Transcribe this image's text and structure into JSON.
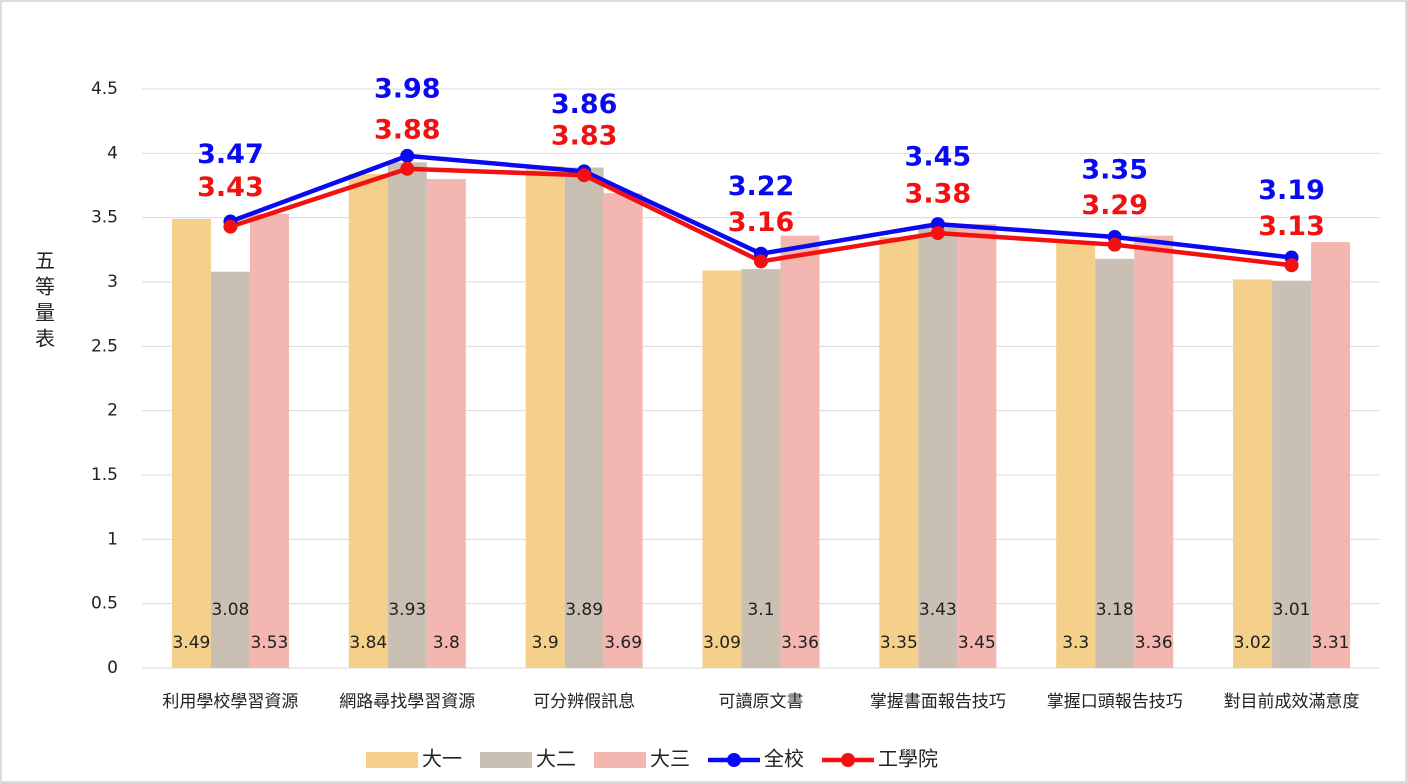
{
  "chart_data": {
    "type": "bar-line",
    "y_label": "五等量表",
    "categories": [
      "利用學校學習資源",
      "網路尋找學習資源",
      "可分辨假訊息",
      "可讀原文書",
      "掌握書面報告技巧",
      "掌握口頭報告技巧",
      "對目前成效滿意度"
    ],
    "series": [
      {
        "name": "大一",
        "kind": "bar",
        "color": "#f4d08a",
        "values": [
          3.49,
          3.84,
          3.9,
          3.09,
          3.35,
          3.3,
          3.02
        ]
      },
      {
        "name": "大二",
        "kind": "bar",
        "color": "#c9bfb2",
        "values": [
          3.08,
          3.93,
          3.89,
          3.1,
          3.43,
          3.18,
          3.01
        ]
      },
      {
        "name": "大三",
        "kind": "bar",
        "color": "#f4b6b0",
        "values": [
          3.53,
          3.8,
          3.69,
          3.36,
          3.45,
          3.36,
          3.31
        ]
      },
      {
        "name": "全校",
        "kind": "line",
        "color": "#0a0af0",
        "values": [
          3.47,
          3.98,
          3.86,
          3.22,
          3.45,
          3.35,
          3.19
        ]
      },
      {
        "name": "工學院",
        "kind": "line",
        "color": "#f21010",
        "values": [
          3.43,
          3.88,
          3.83,
          3.16,
          3.38,
          3.29,
          3.13
        ]
      }
    ],
    "ylim": [
      0,
      4.5
    ],
    "yticks": [
      0,
      0.5,
      1,
      1.5,
      2,
      2.5,
      3,
      3.5,
      4,
      4.5
    ],
    "grid": true,
    "legend": "bottom"
  }
}
